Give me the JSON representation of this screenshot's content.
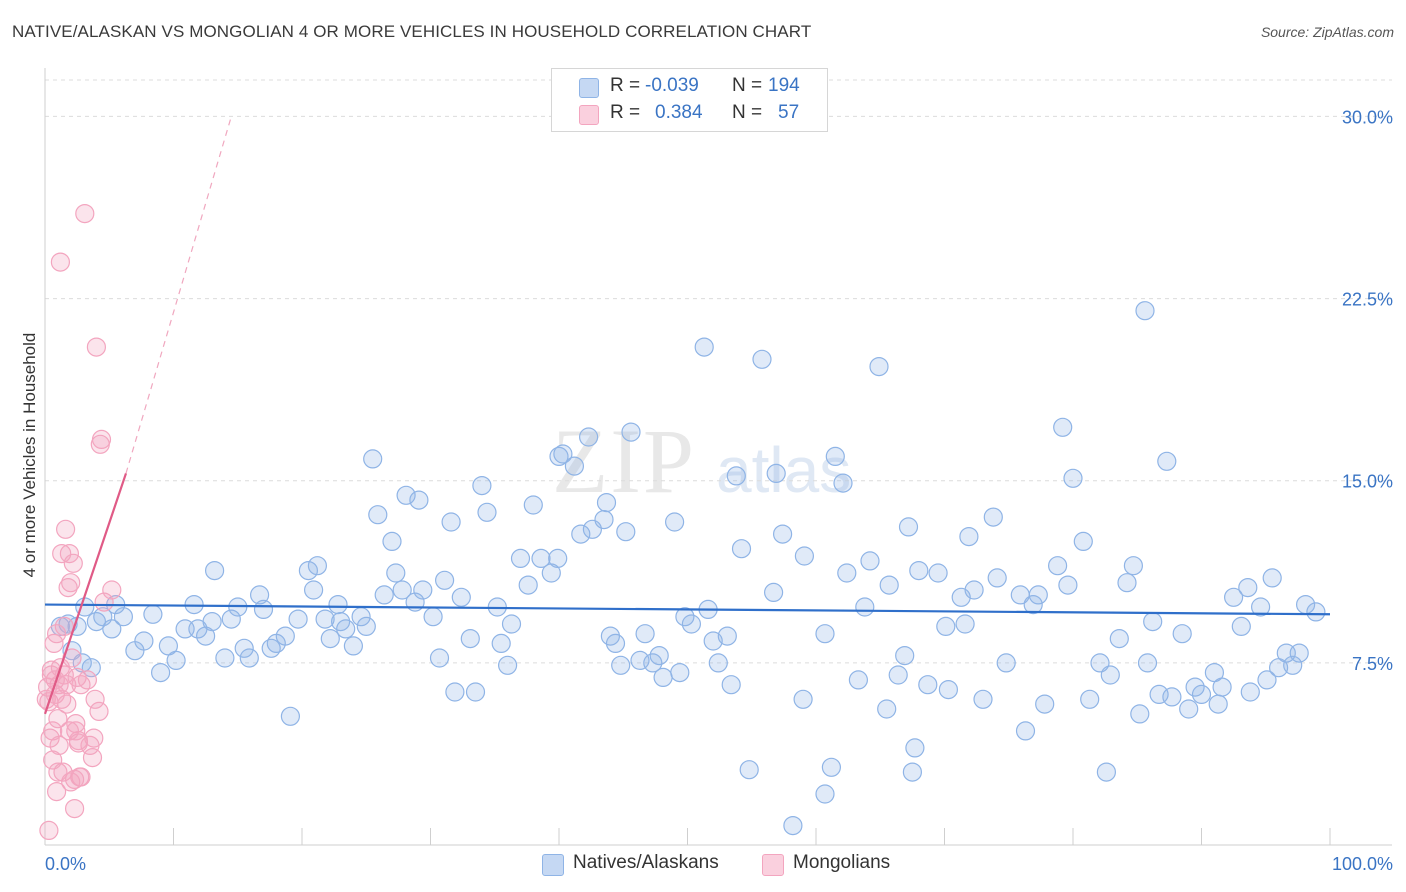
{
  "title": "NATIVE/ALASKAN VS MONGOLIAN 4 OR MORE VEHICLES IN HOUSEHOLD CORRELATION CHART",
  "source": "Source: ZipAtlas.com",
  "watermark": {
    "zip": "ZIP",
    "atlas": "atlas"
  },
  "legend": {
    "rows": [
      {
        "r_label": "R =",
        "r_value": "-0.039",
        "n_label": "N =",
        "n_value": "194",
        "color": "#8fb4e6"
      },
      {
        "r_label": "R =",
        "r_value": "0.384",
        "n_label": "N =",
        "n_value": "57",
        "color": "#f3a5bf"
      }
    ]
  },
  "bottom_legend": [
    {
      "label": "Natives/Alaskans",
      "color": "#8fb4e6"
    },
    {
      "label": "Mongolians",
      "color": "#f3a5bf"
    }
  ],
  "chart_data": {
    "type": "scatter",
    "title": "NATIVE/ALASKAN VS MONGOLIAN 4 OR MORE VEHICLES IN HOUSEHOLD CORRELATION CHART",
    "xlabel": "",
    "ylabel": "4 or more Vehicles in Household",
    "xlim": [
      0,
      100
    ],
    "ylim": [
      0,
      31.5
    ],
    "x_tick_labels": [
      "0.0%",
      "100.0%"
    ],
    "y_ticks": [
      7.5,
      15.0,
      22.5,
      30.0
    ],
    "y_tick_labels": [
      "7.5%",
      "15.0%",
      "22.5%",
      "30.0%"
    ],
    "grid": true,
    "series": [
      {
        "name": "Natives/Alaskans",
        "color": "#8fb4e6",
        "line_color": "#2f6fca",
        "trend": {
          "x": [
            0,
            100
          ],
          "y": [
            9.9,
            9.5
          ]
        },
        "points": [
          [
            1.2,
            9.0
          ],
          [
            1.8,
            9.1
          ],
          [
            2.1,
            8.0
          ],
          [
            2.5,
            9.0
          ],
          [
            2.9,
            7.5
          ],
          [
            3.1,
            9.8
          ],
          [
            3.6,
            7.3
          ],
          [
            4.0,
            9.2
          ],
          [
            4.5,
            9.4
          ],
          [
            5.2,
            8.9
          ],
          [
            5.5,
            9.9
          ],
          [
            6.1,
            9.4
          ],
          [
            7.0,
            8.0
          ],
          [
            7.7,
            8.4
          ],
          [
            8.4,
            9.5
          ],
          [
            9.0,
            7.1
          ],
          [
            9.6,
            8.2
          ],
          [
            10.2,
            7.6
          ],
          [
            10.9,
            8.9
          ],
          [
            11.6,
            9.9
          ],
          [
            11.9,
            8.9
          ],
          [
            12.5,
            8.6
          ],
          [
            13.0,
            9.2
          ],
          [
            13.2,
            11.3
          ],
          [
            14.0,
            7.7
          ],
          [
            14.5,
            9.3
          ],
          [
            15.0,
            9.8
          ],
          [
            15.5,
            8.1
          ],
          [
            15.9,
            7.7
          ],
          [
            16.7,
            10.3
          ],
          [
            17.0,
            9.7
          ],
          [
            17.6,
            8.1
          ],
          [
            18.0,
            8.3
          ],
          [
            18.7,
            8.6
          ],
          [
            19.1,
            5.3
          ],
          [
            19.7,
            9.3
          ],
          [
            20.5,
            11.3
          ],
          [
            20.9,
            10.5
          ],
          [
            21.2,
            11.5
          ],
          [
            21.8,
            9.3
          ],
          [
            22.2,
            8.5
          ],
          [
            22.8,
            9.9
          ],
          [
            23.0,
            9.2
          ],
          [
            23.4,
            8.9
          ],
          [
            24.0,
            8.2
          ],
          [
            24.6,
            9.4
          ],
          [
            25.0,
            9.0
          ],
          [
            25.5,
            15.9
          ],
          [
            25.9,
            13.6
          ],
          [
            26.4,
            10.3
          ],
          [
            27.0,
            12.5
          ],
          [
            27.3,
            11.2
          ],
          [
            27.8,
            10.5
          ],
          [
            28.1,
            14.4
          ],
          [
            28.8,
            10.0
          ],
          [
            29.1,
            14.2
          ],
          [
            29.4,
            10.5
          ],
          [
            30.2,
            9.4
          ],
          [
            30.7,
            7.7
          ],
          [
            31.1,
            10.9
          ],
          [
            31.6,
            13.3
          ],
          [
            31.9,
            6.3
          ],
          [
            32.4,
            10.2
          ],
          [
            33.1,
            8.5
          ],
          [
            33.5,
            6.3
          ],
          [
            34.0,
            14.8
          ],
          [
            34.4,
            13.7
          ],
          [
            35.2,
            9.8
          ],
          [
            35.5,
            8.3
          ],
          [
            36.0,
            7.4
          ],
          [
            36.3,
            9.1
          ],
          [
            37.0,
            11.8
          ],
          [
            37.6,
            10.7
          ],
          [
            38.0,
            14.0
          ],
          [
            38.6,
            11.8
          ],
          [
            39.4,
            11.2
          ],
          [
            39.9,
            11.8
          ],
          [
            40.0,
            16.0
          ],
          [
            40.3,
            16.1
          ],
          [
            41.2,
            15.6
          ],
          [
            41.7,
            12.8
          ],
          [
            42.3,
            16.8
          ],
          [
            42.6,
            13.0
          ],
          [
            43.5,
            13.4
          ],
          [
            43.7,
            14.1
          ],
          [
            44.0,
            8.6
          ],
          [
            44.4,
            8.3
          ],
          [
            44.8,
            7.4
          ],
          [
            45.2,
            12.9
          ],
          [
            45.6,
            17.0
          ],
          [
            46.3,
            7.6
          ],
          [
            46.7,
            8.7
          ],
          [
            47.3,
            7.5
          ],
          [
            47.8,
            7.8
          ],
          [
            48.1,
            6.9
          ],
          [
            49.0,
            13.3
          ],
          [
            49.4,
            7.1
          ],
          [
            49.8,
            9.4
          ],
          [
            50.3,
            9.1
          ],
          [
            51.3,
            20.5
          ],
          [
            51.6,
            9.7
          ],
          [
            52.0,
            8.4
          ],
          [
            52.4,
            7.5
          ],
          [
            53.1,
            8.6
          ],
          [
            53.4,
            6.6
          ],
          [
            53.8,
            15.2
          ],
          [
            54.2,
            12.2
          ],
          [
            54.8,
            3.1
          ],
          [
            55.8,
            20.0
          ],
          [
            56.7,
            10.4
          ],
          [
            56.9,
            15.3
          ],
          [
            57.4,
            12.8
          ],
          [
            58.2,
            0.8
          ],
          [
            59.0,
            6.0
          ],
          [
            59.1,
            11.9
          ],
          [
            60.7,
            2.1
          ],
          [
            60.7,
            8.7
          ],
          [
            61.2,
            3.2
          ],
          [
            61.5,
            16.0
          ],
          [
            62.1,
            14.9
          ],
          [
            62.4,
            11.2
          ],
          [
            63.3,
            6.8
          ],
          [
            63.8,
            9.8
          ],
          [
            64.2,
            11.7
          ],
          [
            64.9,
            19.7
          ],
          [
            65.5,
            5.6
          ],
          [
            65.7,
            10.7
          ],
          [
            66.4,
            7.0
          ],
          [
            66.9,
            7.8
          ],
          [
            67.2,
            13.1
          ],
          [
            67.5,
            3.0
          ],
          [
            67.7,
            4.0
          ],
          [
            68.0,
            11.3
          ],
          [
            68.7,
            6.6
          ],
          [
            69.5,
            11.2
          ],
          [
            70.1,
            9.0
          ],
          [
            70.3,
            6.4
          ],
          [
            71.3,
            10.2
          ],
          [
            71.6,
            9.1
          ],
          [
            71.9,
            12.7
          ],
          [
            72.3,
            10.5
          ],
          [
            73.0,
            6.0
          ],
          [
            73.8,
            13.5
          ],
          [
            74.1,
            11.0
          ],
          [
            74.8,
            7.5
          ],
          [
            75.9,
            10.3
          ],
          [
            76.3,
            4.7
          ],
          [
            76.9,
            9.9
          ],
          [
            77.3,
            10.3
          ],
          [
            77.8,
            5.8
          ],
          [
            78.8,
            11.5
          ],
          [
            79.2,
            17.2
          ],
          [
            79.6,
            10.7
          ],
          [
            80.0,
            15.1
          ],
          [
            80.8,
            12.5
          ],
          [
            81.3,
            6.0
          ],
          [
            82.1,
            7.5
          ],
          [
            82.6,
            3.0
          ],
          [
            82.9,
            7.0
          ],
          [
            83.6,
            8.5
          ],
          [
            84.2,
            10.8
          ],
          [
            84.7,
            11.5
          ],
          [
            85.2,
            5.4
          ],
          [
            85.8,
            7.5
          ],
          [
            86.2,
            9.2
          ],
          [
            86.7,
            6.2
          ],
          [
            87.3,
            15.8
          ],
          [
            87.7,
            6.1
          ],
          [
            88.5,
            8.7
          ],
          [
            89.0,
            5.6
          ],
          [
            89.5,
            6.5
          ],
          [
            90.0,
            6.2
          ],
          [
            91.0,
            7.1
          ],
          [
            91.3,
            5.8
          ],
          [
            91.6,
            6.5
          ],
          [
            92.5,
            10.2
          ],
          [
            93.1,
            9.0
          ],
          [
            93.6,
            10.6
          ],
          [
            93.8,
            6.3
          ],
          [
            94.6,
            9.8
          ],
          [
            95.1,
            6.8
          ],
          [
            95.5,
            11.0
          ],
          [
            96.0,
            7.3
          ],
          [
            96.6,
            7.9
          ],
          [
            97.1,
            7.4
          ],
          [
            97.6,
            7.9
          ],
          [
            98.1,
            9.9
          ],
          [
            98.9,
            9.6
          ],
          [
            85.6,
            22.0
          ]
        ]
      },
      {
        "name": "Mongolians",
        "color": "#f3a5bf",
        "line_color": "#e05a86",
        "trend": {
          "x": [
            0,
            6.3
          ],
          "y": [
            5.4,
            15.3
          ]
        },
        "trend_extension": {
          "x": [
            6.3,
            14.5
          ],
          "y": [
            15.3,
            30.0
          ]
        },
        "points": [
          [
            0.2,
            6.5
          ],
          [
            0.3,
            5.9
          ],
          [
            0.4,
            4.4
          ],
          [
            0.5,
            7.0
          ],
          [
            0.6,
            3.5
          ],
          [
            0.7,
            8.3
          ],
          [
            0.8,
            6.8
          ],
          [
            0.9,
            2.2
          ],
          [
            1.0,
            5.2
          ],
          [
            1.1,
            4.1
          ],
          [
            1.2,
            7.3
          ],
          [
            1.3,
            6.0
          ],
          [
            1.4,
            3.0
          ],
          [
            1.5,
            9.0
          ],
          [
            1.6,
            13.0
          ],
          [
            1.7,
            6.6
          ],
          [
            1.8,
            10.6
          ],
          [
            1.9,
            4.7
          ],
          [
            2.0,
            2.6
          ],
          [
            2.1,
            7.7
          ],
          [
            2.2,
            11.6
          ],
          [
            2.3,
            1.5
          ],
          [
            2.4,
            5.0
          ],
          [
            2.5,
            6.9
          ],
          [
            2.6,
            4.2
          ],
          [
            2.7,
            2.8
          ],
          [
            2.8,
            6.6
          ],
          [
            0.3,
            0.6
          ],
          [
            0.5,
            7.2
          ],
          [
            0.6,
            4.7
          ],
          [
            0.8,
            6.2
          ],
          [
            0.9,
            8.7
          ],
          [
            1.0,
            3.0
          ],
          [
            1.1,
            6.6
          ],
          [
            1.2,
            24.0
          ],
          [
            1.3,
            12.0
          ],
          [
            1.5,
            7.0
          ],
          [
            1.7,
            5.8
          ],
          [
            1.9,
            12.0
          ],
          [
            2.0,
            10.8
          ],
          [
            2.3,
            2.7
          ],
          [
            2.4,
            4.7
          ],
          [
            2.6,
            4.3
          ],
          [
            2.8,
            2.8
          ],
          [
            3.1,
            26.0
          ],
          [
            3.3,
            6.8
          ],
          [
            3.5,
            4.1
          ],
          [
            3.7,
            3.6
          ],
          [
            3.8,
            4.4
          ],
          [
            3.9,
            6.0
          ],
          [
            4.0,
            20.5
          ],
          [
            4.2,
            5.5
          ],
          [
            4.3,
            16.5
          ],
          [
            4.4,
            16.7
          ],
          [
            4.6,
            10.0
          ],
          [
            5.2,
            10.5
          ],
          [
            0.1,
            6.0
          ]
        ]
      }
    ]
  }
}
